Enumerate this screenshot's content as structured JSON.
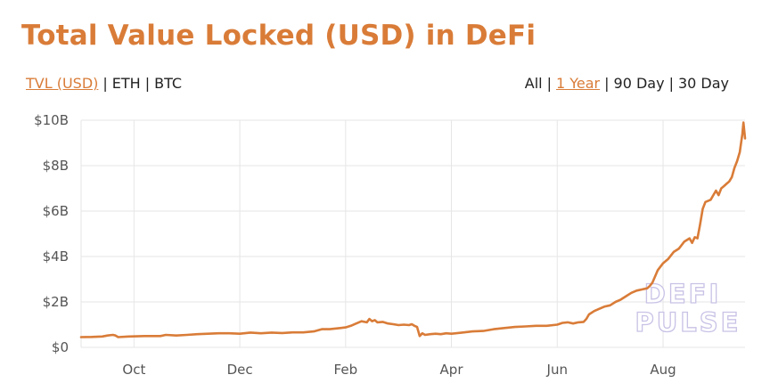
{
  "title": "Total Value Locked (USD) in DeFi",
  "currency_tabs": [
    {
      "label": "TVL (USD)",
      "active": true
    },
    {
      "label": "ETH",
      "active": false
    },
    {
      "label": "BTC",
      "active": false
    }
  ],
  "range_tabs": [
    {
      "label": "All",
      "active": false
    },
    {
      "label": "1 Year",
      "active": true
    },
    {
      "label": "90 Day",
      "active": false
    },
    {
      "label": "30 Day",
      "active": false
    }
  ],
  "separator": "|",
  "watermark": {
    "line1": "DEFI",
    "line2": "PULSE"
  },
  "colors": {
    "accent": "#d97c38",
    "line": "#d97c38",
    "grid": "#e6e6e6",
    "watermark": "#c9c2e6"
  },
  "chart_data": {
    "type": "line",
    "grid": true,
    "legend": "none",
    "x_unit": "month",
    "xlim": [
      0,
      12.55
    ],
    "ylim": [
      0,
      10
    ],
    "y_unit": "billion USD",
    "y_ticks": [
      {
        "value": 0,
        "label": "$0"
      },
      {
        "value": 2,
        "label": "$2B"
      },
      {
        "value": 4,
        "label": "$4B"
      },
      {
        "value": 6,
        "label": "$6B"
      },
      {
        "value": 8,
        "label": "$8B"
      },
      {
        "value": 10,
        "label": "$10B"
      }
    ],
    "x_ticks": [
      {
        "value": 1,
        "label": "Oct"
      },
      {
        "value": 3,
        "label": "Dec"
      },
      {
        "value": 5,
        "label": "Feb"
      },
      {
        "value": 7,
        "label": "Apr"
      },
      {
        "value": 9,
        "label": "Jun"
      },
      {
        "value": 11,
        "label": "Aug"
      }
    ],
    "series": [
      {
        "points": [
          [
            0.0,
            0.45
          ],
          [
            0.2,
            0.46
          ],
          [
            0.4,
            0.48
          ],
          [
            0.5,
            0.52
          ],
          [
            0.6,
            0.55
          ],
          [
            0.65,
            0.52
          ],
          [
            0.7,
            0.45
          ],
          [
            0.9,
            0.48
          ],
          [
            1.2,
            0.5
          ],
          [
            1.5,
            0.5
          ],
          [
            1.6,
            0.55
          ],
          [
            1.8,
            0.52
          ],
          [
            2.0,
            0.55
          ],
          [
            2.2,
            0.58
          ],
          [
            2.4,
            0.6
          ],
          [
            2.6,
            0.62
          ],
          [
            2.8,
            0.62
          ],
          [
            3.0,
            0.6
          ],
          [
            3.2,
            0.65
          ],
          [
            3.4,
            0.62
          ],
          [
            3.6,
            0.65
          ],
          [
            3.8,
            0.63
          ],
          [
            4.0,
            0.66
          ],
          [
            4.2,
            0.66
          ],
          [
            4.4,
            0.7
          ],
          [
            4.55,
            0.8
          ],
          [
            4.7,
            0.8
          ],
          [
            4.9,
            0.85
          ],
          [
            5.0,
            0.88
          ],
          [
            5.1,
            0.95
          ],
          [
            5.2,
            1.05
          ],
          [
            5.3,
            1.15
          ],
          [
            5.4,
            1.1
          ],
          [
            5.45,
            1.25
          ],
          [
            5.5,
            1.15
          ],
          [
            5.55,
            1.2
          ],
          [
            5.6,
            1.1
          ],
          [
            5.7,
            1.12
          ],
          [
            5.8,
            1.05
          ],
          [
            5.9,
            1.02
          ],
          [
            6.0,
            0.98
          ],
          [
            6.1,
            1.0
          ],
          [
            6.2,
            0.98
          ],
          [
            6.25,
            1.02
          ],
          [
            6.3,
            0.95
          ],
          [
            6.35,
            0.9
          ],
          [
            6.4,
            0.5
          ],
          [
            6.45,
            0.62
          ],
          [
            6.5,
            0.55
          ],
          [
            6.6,
            0.58
          ],
          [
            6.7,
            0.6
          ],
          [
            6.8,
            0.58
          ],
          [
            6.9,
            0.62
          ],
          [
            7.0,
            0.6
          ],
          [
            7.2,
            0.65
          ],
          [
            7.4,
            0.7
          ],
          [
            7.6,
            0.72
          ],
          [
            7.8,
            0.8
          ],
          [
            8.0,
            0.85
          ],
          [
            8.2,
            0.9
          ],
          [
            8.4,
            0.92
          ],
          [
            8.6,
            0.95
          ],
          [
            8.8,
            0.95
          ],
          [
            9.0,
            1.0
          ],
          [
            9.1,
            1.08
          ],
          [
            9.2,
            1.1
          ],
          [
            9.3,
            1.05
          ],
          [
            9.4,
            1.1
          ],
          [
            9.5,
            1.12
          ],
          [
            9.55,
            1.25
          ],
          [
            9.6,
            1.45
          ],
          [
            9.7,
            1.6
          ],
          [
            9.8,
            1.7
          ],
          [
            9.9,
            1.8
          ],
          [
            10.0,
            1.85
          ],
          [
            10.1,
            2.0
          ],
          [
            10.2,
            2.1
          ],
          [
            10.3,
            2.25
          ],
          [
            10.4,
            2.4
          ],
          [
            10.5,
            2.5
          ],
          [
            10.6,
            2.55
          ],
          [
            10.7,
            2.6
          ],
          [
            10.75,
            2.7
          ],
          [
            10.8,
            2.85
          ],
          [
            10.9,
            3.4
          ],
          [
            11.0,
            3.7
          ],
          [
            11.1,
            3.9
          ],
          [
            11.2,
            4.2
          ],
          [
            11.3,
            4.35
          ],
          [
            11.4,
            4.65
          ],
          [
            11.5,
            4.8
          ],
          [
            11.55,
            4.6
          ],
          [
            11.6,
            4.85
          ],
          [
            11.65,
            4.8
          ],
          [
            11.7,
            5.4
          ],
          [
            11.75,
            6.1
          ],
          [
            11.8,
            6.4
          ],
          [
            11.9,
            6.5
          ],
          [
            11.95,
            6.7
          ],
          [
            12.0,
            6.9
          ],
          [
            12.05,
            6.7
          ],
          [
            12.1,
            7.0
          ],
          [
            12.15,
            7.1
          ],
          [
            12.2,
            7.2
          ],
          [
            12.25,
            7.3
          ],
          [
            12.3,
            7.5
          ],
          [
            12.35,
            7.9
          ],
          [
            12.4,
            8.2
          ],
          [
            12.45,
            8.6
          ],
          [
            12.5,
            9.4
          ],
          [
            12.52,
            9.9
          ],
          [
            12.55,
            9.2
          ]
        ]
      }
    ]
  }
}
